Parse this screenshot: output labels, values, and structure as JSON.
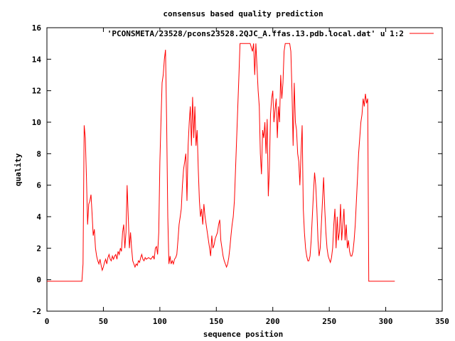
{
  "chart_data": {
    "type": "line",
    "title": "consensus based quality prediction",
    "xlabel": "sequence position",
    "ylabel": "quality",
    "xlim": [
      0,
      350
    ],
    "ylim": [
      -2,
      16
    ],
    "xticks": [
      0,
      50,
      100,
      150,
      200,
      250,
      300,
      350
    ],
    "yticks": [
      -2,
      0,
      2,
      4,
      6,
      8,
      10,
      12,
      14,
      16
    ],
    "grid": false,
    "legend_position": "top-right",
    "series": [
      {
        "name": "'PCONSMETA/23528/pcons23528.2QJC_A.ffas.13.pdb.local.dat' u 1:2",
        "color": "#ff0000",
        "points": [
          [
            0,
            -0.1
          ],
          [
            31,
            -0.1
          ],
          [
            32,
            1.0
          ],
          [
            33,
            9.8
          ],
          [
            34,
            9.0
          ],
          [
            35,
            6.5
          ],
          [
            36,
            3.5
          ],
          [
            37,
            4.8
          ],
          [
            38,
            5.0
          ],
          [
            39,
            5.4
          ],
          [
            40,
            4.2
          ],
          [
            41,
            2.8
          ],
          [
            42,
            3.2
          ],
          [
            43,
            2.0
          ],
          [
            44,
            1.5
          ],
          [
            45,
            1.2
          ],
          [
            46,
            1.0
          ],
          [
            47,
            1.3
          ],
          [
            48,
            0.9
          ],
          [
            49,
            0.6
          ],
          [
            50,
            0.8
          ],
          [
            51,
            1.1
          ],
          [
            52,
            1.3
          ],
          [
            53,
            1.0
          ],
          [
            54,
            1.4
          ],
          [
            55,
            1.6
          ],
          [
            56,
            1.3
          ],
          [
            57,
            1.2
          ],
          [
            58,
            1.5
          ],
          [
            59,
            1.3
          ],
          [
            60,
            1.5
          ],
          [
            61,
            1.6
          ],
          [
            62,
            1.3
          ],
          [
            63,
            1.8
          ],
          [
            64,
            1.6
          ],
          [
            65,
            2.0
          ],
          [
            66,
            1.8
          ],
          [
            67,
            3.0
          ],
          [
            68,
            3.5
          ],
          [
            69,
            2.0
          ],
          [
            70,
            3.0
          ],
          [
            71,
            6.0
          ],
          [
            72,
            4.0
          ],
          [
            73,
            2.0
          ],
          [
            74,
            3.0
          ],
          [
            75,
            2.0
          ],
          [
            76,
            1.2
          ],
          [
            77,
            1.0
          ],
          [
            78,
            0.8
          ],
          [
            79,
            1.0
          ],
          [
            80,
            0.9
          ],
          [
            81,
            1.2
          ],
          [
            82,
            1.1
          ],
          [
            83,
            1.4
          ],
          [
            84,
            1.6
          ],
          [
            85,
            1.3
          ],
          [
            86,
            1.2
          ],
          [
            87,
            1.4
          ],
          [
            88,
            1.3
          ],
          [
            90,
            1.4
          ],
          [
            92,
            1.3
          ],
          [
            94,
            1.5
          ],
          [
            95,
            1.3
          ],
          [
            96,
            2.0
          ],
          [
            97,
            2.1
          ],
          [
            98,
            1.6
          ],
          [
            99,
            3.0
          ],
          [
            100,
            7.5
          ],
          [
            101,
            10.0
          ],
          [
            102,
            12.5
          ],
          [
            103,
            13.0
          ],
          [
            104,
            14.0
          ],
          [
            105,
            14.6
          ],
          [
            106,
            10.0
          ],
          [
            107,
            4.0
          ],
          [
            108,
            1.0
          ],
          [
            109,
            1.5
          ],
          [
            110,
            1.0
          ],
          [
            111,
            1.2
          ],
          [
            112,
            1.0
          ],
          [
            113,
            1.3
          ],
          [
            114,
            1.4
          ],
          [
            115,
            1.6
          ],
          [
            116,
            2.5
          ],
          [
            117,
            3.5
          ],
          [
            118,
            4.0
          ],
          [
            119,
            4.5
          ],
          [
            120,
            6.0
          ],
          [
            121,
            7.0
          ],
          [
            122,
            7.5
          ],
          [
            123,
            8.0
          ],
          [
            124,
            5.0
          ],
          [
            125,
            8.5
          ],
          [
            126,
            10.0
          ],
          [
            127,
            11.0
          ],
          [
            128,
            8.5
          ],
          [
            129,
            11.6
          ],
          [
            130,
            9.0
          ],
          [
            131,
            11.0
          ],
          [
            132,
            8.5
          ],
          [
            133,
            9.5
          ],
          [
            134,
            7.0
          ],
          [
            135,
            5.0
          ],
          [
            136,
            4.0
          ],
          [
            137,
            4.5
          ],
          [
            138,
            3.5
          ],
          [
            139,
            4.8
          ],
          [
            140,
            4.0
          ],
          [
            141,
            3.5
          ],
          [
            142,
            3.0
          ],
          [
            143,
            2.5
          ],
          [
            144,
            2.0
          ],
          [
            145,
            1.5
          ],
          [
            146,
            2.8
          ],
          [
            147,
            2.0
          ],
          [
            148,
            2.2
          ],
          [
            149,
            2.6
          ],
          [
            150,
            2.8
          ],
          [
            151,
            3.0
          ],
          [
            152,
            3.5
          ],
          [
            153,
            3.8
          ],
          [
            154,
            2.5
          ],
          [
            155,
            2.0
          ],
          [
            156,
            1.5
          ],
          [
            157,
            1.2
          ],
          [
            158,
            1.0
          ],
          [
            159,
            0.8
          ],
          [
            160,
            1.0
          ],
          [
            161,
            1.4
          ],
          [
            162,
            2.0
          ],
          [
            163,
            2.8
          ],
          [
            164,
            3.5
          ],
          [
            165,
            4.0
          ],
          [
            166,
            5.0
          ],
          [
            167,
            7.0
          ],
          [
            168,
            9.0
          ],
          [
            169,
            11.0
          ],
          [
            170,
            13.0
          ],
          [
            171,
            15.0
          ],
          [
            180,
            15.0
          ],
          [
            182,
            14.5
          ],
          [
            183,
            15.0
          ],
          [
            184,
            13.0
          ],
          [
            185,
            15.0
          ],
          [
            186,
            13.5
          ],
          [
            187,
            12.0
          ],
          [
            188,
            11.0
          ],
          [
            189,
            8.0
          ],
          [
            190,
            6.7
          ],
          [
            191,
            9.5
          ],
          [
            192,
            9.0
          ],
          [
            193,
            10.0
          ],
          [
            194,
            8.0
          ],
          [
            195,
            10.2
          ],
          [
            196,
            5.3
          ],
          [
            197,
            7.0
          ],
          [
            198,
            10.5
          ],
          [
            199,
            11.5
          ],
          [
            200,
            12.0
          ],
          [
            201,
            10.0
          ],
          [
            202,
            10.8
          ],
          [
            203,
            11.5
          ],
          [
            204,
            9.0
          ],
          [
            205,
            11.0
          ],
          [
            206,
            10.0
          ],
          [
            207,
            13.0
          ],
          [
            208,
            11.5
          ],
          [
            209,
            12.5
          ],
          [
            210,
            14.5
          ],
          [
            211,
            15.0
          ],
          [
            215,
            15.0
          ],
          [
            216,
            14.5
          ],
          [
            217,
            12.0
          ],
          [
            218,
            8.5
          ],
          [
            219,
            12.5
          ],
          [
            220,
            10.0
          ],
          [
            221,
            9.5
          ],
          [
            222,
            8.0
          ],
          [
            223,
            7.5
          ],
          [
            224,
            6.0
          ],
          [
            225,
            8.0
          ],
          [
            226,
            9.8
          ],
          [
            227,
            4.5
          ],
          [
            228,
            3.0
          ],
          [
            229,
            2.0
          ],
          [
            230,
            1.5
          ],
          [
            231,
            1.2
          ],
          [
            232,
            1.2
          ],
          [
            233,
            1.5
          ],
          [
            234,
            2.5
          ],
          [
            235,
            4.0
          ],
          [
            236,
            5.5
          ],
          [
            237,
            6.8
          ],
          [
            238,
            6.0
          ],
          [
            239,
            4.5
          ],
          [
            240,
            2.5
          ],
          [
            241,
            1.5
          ],
          [
            242,
            2.0
          ],
          [
            243,
            3.5
          ],
          [
            244,
            5.0
          ],
          [
            245,
            6.5
          ],
          [
            246,
            4.5
          ],
          [
            247,
            3.0
          ],
          [
            248,
            2.0
          ],
          [
            249,
            1.5
          ],
          [
            250,
            1.3
          ],
          [
            251,
            1.1
          ],
          [
            252,
            1.4
          ],
          [
            253,
            2.0
          ],
          [
            254,
            3.5
          ],
          [
            255,
            4.5
          ],
          [
            256,
            2.0
          ],
          [
            257,
            4.0
          ],
          [
            258,
            2.5
          ],
          [
            259,
            3.0
          ],
          [
            260,
            4.8
          ],
          [
            261,
            2.5
          ],
          [
            262,
            3.5
          ],
          [
            263,
            4.5
          ],
          [
            264,
            2.5
          ],
          [
            265,
            3.5
          ],
          [
            266,
            2.0
          ],
          [
            267,
            2.5
          ],
          [
            268,
            1.8
          ],
          [
            269,
            1.5
          ],
          [
            270,
            1.5
          ],
          [
            271,
            1.8
          ],
          [
            272,
            2.5
          ],
          [
            273,
            3.5
          ],
          [
            274,
            5.0
          ],
          [
            275,
            6.5
          ],
          [
            276,
            8.0
          ],
          [
            277,
            9.0
          ],
          [
            278,
            10.0
          ],
          [
            279,
            10.5
          ],
          [
            280,
            11.5
          ],
          [
            281,
            11.0
          ],
          [
            282,
            11.8
          ],
          [
            283,
            11.2
          ],
          [
            284,
            11.5
          ],
          [
            285,
            -0.1
          ],
          [
            308,
            -0.1
          ]
        ]
      }
    ]
  }
}
